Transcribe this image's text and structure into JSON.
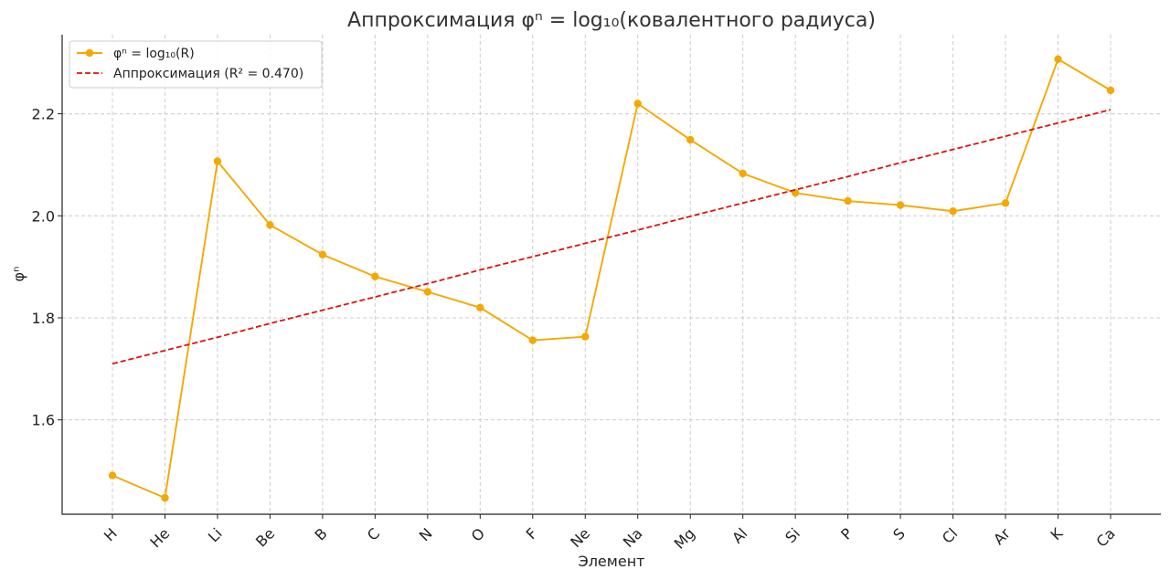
{
  "chart_data": {
    "type": "line",
    "title": "Аппроксимация φⁿ = log₁₀(ковалентного радиуса)",
    "xlabel": "Элемент",
    "ylabel": "φⁿ",
    "categories": [
      "H",
      "He",
      "Li",
      "Be",
      "B",
      "C",
      "N",
      "O",
      "F",
      "Ne",
      "Na",
      "Mg",
      "Al",
      "Si",
      "P",
      "S",
      "Cl",
      "Ar",
      "K",
      "Ca"
    ],
    "ylim": [
      1.415,
      2.355
    ],
    "yticks": [
      1.6,
      1.8,
      2.0,
      2.2
    ],
    "grid": true,
    "legend_position": "top-left",
    "series": [
      {
        "name": "φⁿ = log₁₀(R)",
        "color": "#f5a800",
        "style": "solid-with-markers",
        "values": [
          1.491,
          1.447,
          2.107,
          1.982,
          1.924,
          1.881,
          1.851,
          1.82,
          1.756,
          1.763,
          2.22,
          2.149,
          2.083,
          2.045,
          2.029,
          2.021,
          2.009,
          2.025,
          2.307,
          2.246
        ]
      },
      {
        "name": "Аппроксимация (R² = 0.470)",
        "color": "#e01010",
        "style": "dashed",
        "values": [
          1.71,
          1.736,
          1.762,
          1.789,
          1.815,
          1.841,
          1.867,
          1.894,
          1.92,
          1.946,
          1.972,
          1.999,
          2.025,
          2.051,
          2.077,
          2.104,
          2.13,
          2.156,
          2.182,
          2.208
        ]
      }
    ]
  }
}
